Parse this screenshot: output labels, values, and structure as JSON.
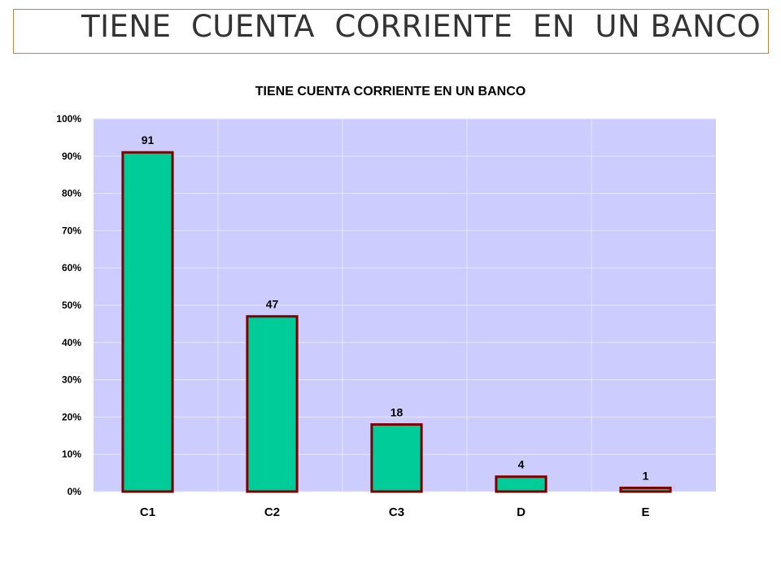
{
  "slide": {
    "title": "TIENE  CUENTA  CORRIENTE  EN  UN BANCO"
  },
  "chart_data": {
    "type": "bar",
    "title": "TIENE CUENTA CORRIENTE EN UN BANCO",
    "categories": [
      "C1",
      "C2",
      "C3",
      "D",
      "E"
    ],
    "values": [
      91,
      47,
      18,
      4,
      1
    ],
    "data_labels": [
      "91",
      "47",
      "18",
      "4",
      "1"
    ],
    "ylim": [
      0,
      100
    ],
    "yticks": [
      0,
      10,
      20,
      30,
      40,
      50,
      60,
      70,
      80,
      90,
      100
    ],
    "ytick_labels": [
      "0%",
      "10%",
      "20%",
      "30%",
      "40%",
      "50%",
      "60%",
      "70%",
      "80%",
      "90%",
      "100%"
    ],
    "xlabel": "",
    "ylabel": "",
    "grid": true,
    "legend": "none",
    "colors": {
      "bar_fill": "#00cc99",
      "bar_border": "#800000",
      "plot_background": "#ccccff",
      "gridline": "#e8e8ff",
      "frame_border": "#c9823e"
    }
  }
}
